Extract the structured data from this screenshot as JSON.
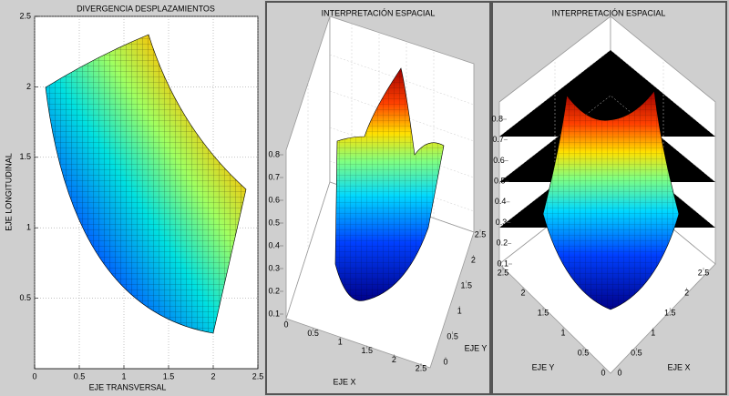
{
  "chart_data": [
    {
      "type": "mesh2d",
      "title": "DIVERGENCIA DESPLAZAMIENTOS",
      "x_label": "EJE TRANSVERSAL",
      "y_label": "EJE LONGITUDINAL",
      "xlim": [
        0,
        2.5
      ],
      "ylim": [
        0,
        2.5
      ],
      "xticks": [
        0,
        0.5,
        1,
        1.5,
        2,
        2.5
      ],
      "yticks": [
        0.5,
        1,
        1.5,
        2,
        2.5
      ],
      "grid": true
    },
    {
      "type": "surface3d",
      "title": "INTERPRETACIÓN ESPACIAL",
      "x_label": "EJE X",
      "y_label": "EJE Y",
      "xlim": [
        0,
        2.5
      ],
      "ylim": [
        0,
        2.5
      ],
      "zlim": [
        0.1,
        0.8
      ],
      "xticks": [
        0,
        0.5,
        1,
        1.5,
        2,
        2.5
      ],
      "yticks": [
        0,
        0.5,
        1,
        1.5,
        2,
        2.5
      ],
      "zticks": [
        0.1,
        0.2,
        0.3,
        0.4,
        0.5,
        0.6,
        0.7,
        0.8
      ]
    },
    {
      "type": "surface3d",
      "title": "INTERPRETACIÓN ESPACIAL",
      "x_label": "EJE X",
      "y_label": "EJE Y",
      "xlim": [
        0,
        2.5
      ],
      "ylim": [
        0,
        2.5
      ],
      "zlim": [
        0.1,
        0.8
      ],
      "xticks": [
        0,
        0.5,
        1,
        1.5,
        2,
        2.5
      ],
      "yticks": [
        0,
        0.5,
        1,
        1.5,
        2,
        2.5
      ],
      "zticks": [
        0.1,
        0.2,
        0.3,
        0.4,
        0.5,
        0.6,
        0.7,
        0.8
      ]
    }
  ]
}
